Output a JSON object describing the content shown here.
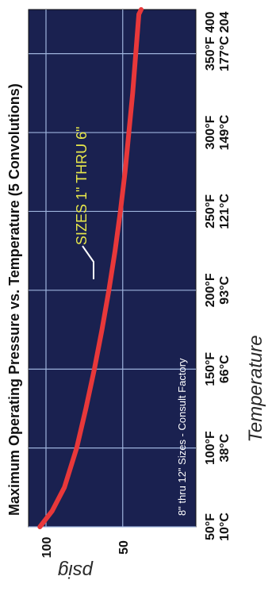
{
  "chart_data": {
    "type": "line",
    "title": "Maximum Operating Pressure vs. Temperature (5 Convolutions)",
    "xlabel": "Temperature",
    "ylabel": "psig",
    "x_ticks": [
      {
        "value": 50,
        "label_f": "50°F",
        "label_c": "10°C"
      },
      {
        "value": 100,
        "label_f": "100°F",
        "label_c": "38°C"
      },
      {
        "value": 150,
        "label_f": "150°F",
        "label_c": "66°C"
      },
      {
        "value": 200,
        "label_f": "200°F",
        "label_c": "93°C"
      },
      {
        "value": 250,
        "label_f": "250°F",
        "label_c": "121°C"
      },
      {
        "value": 300,
        "label_f": "300°F",
        "label_c": "149°C"
      },
      {
        "value": 350,
        "label_f": "350°F",
        "label_c": "177°C"
      },
      {
        "value": 400,
        "label_f": "400",
        "label_c": "204"
      }
    ],
    "y_ticks": [
      {
        "value": 100,
        "label": "100"
      },
      {
        "value": 50,
        "label": "50"
      }
    ],
    "xlim": [
      50,
      400
    ],
    "ylim": [
      0,
      110
    ],
    "grid": true,
    "series": [
      {
        "name": "SIZES 1\" THRU 6\"",
        "x": [
          50,
          60,
          75,
          100,
          125,
          150,
          175,
          200,
          225,
          250,
          275,
          300,
          325,
          350,
          375,
          395
        ],
        "y": [
          104,
          96,
          88,
          80,
          74,
          68.5,
          63.5,
          59,
          55,
          51.5,
          48.5,
          46,
          43.5,
          41.5,
          39.5,
          38
        ]
      }
    ],
    "annotations": [
      {
        "text": "SIZES 1\" THRU 6\"",
        "x": 200,
        "y": 59
      },
      {
        "text": "8\" thru 12\" Sizes - Consult Factory"
      }
    ],
    "colors": {
      "background": "#1a2150",
      "grid": "#9eb3dc",
      "line": "#e8383a",
      "annotation": "#e8e84a",
      "note": "#ffffff"
    }
  }
}
